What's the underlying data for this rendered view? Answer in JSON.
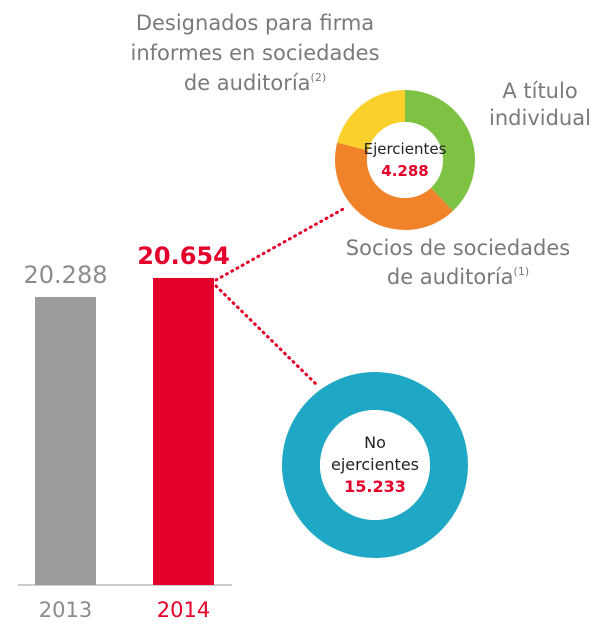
{
  "chart_data": [
    {
      "type": "bar",
      "categories": [
        "2013",
        "2014"
      ],
      "values": [
        20288,
        20654
      ],
      "value_labels": [
        "20.288",
        "20.654"
      ],
      "colors": [
        "#9d9c9c",
        "#e4002b"
      ],
      "label_colors": [
        "#8c8c8c",
        "#e4002b"
      ],
      "ylim": [
        14740,
        21000
      ]
    },
    {
      "type": "pie",
      "center_label": [
        "Ejercientes"
      ],
      "total": 4288,
      "total_label": "4.288",
      "labels": [
        {
          "lines": [
            "A título",
            "individual"
          ]
        },
        {
          "lines": [
            "Socios de sociedades",
            "de auditoría"
          ],
          "note": "(1)"
        },
        {
          "lines": [
            "Designados para firma",
            "informes en sociedades",
            "de auditoría"
          ],
          "note": "(2)"
        }
      ],
      "values": [
        38,
        41,
        21
      ],
      "colors": [
        "#7dc243",
        "#f0832a",
        "#fcd02a"
      ]
    },
    {
      "type": "pie",
      "center_label": [
        "No",
        "ejercientes"
      ],
      "values": [
        15233
      ],
      "value_labels": [
        "15.233"
      ],
      "colors": [
        "#1fa7c6"
      ]
    }
  ]
}
